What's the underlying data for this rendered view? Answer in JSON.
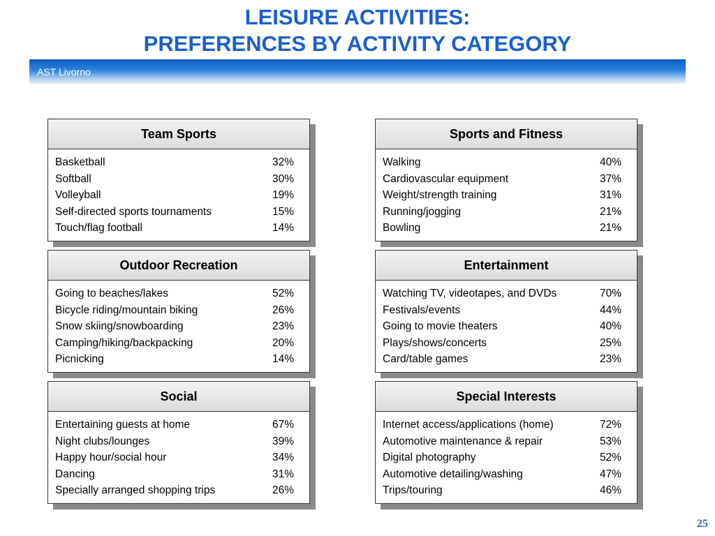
{
  "title_line1": "LEISURE ACTIVITIES:",
  "title_line2": "PREFERENCES BY ACTIVITY CATEGORY",
  "banner_text": "AST Livorno",
  "page_number": "25",
  "colors": {
    "title": "#1a5fd0",
    "banner": "#1a6fd0"
  },
  "cards": [
    {
      "title": "Team Sports",
      "items": [
        {
          "label": "Basketball",
          "pct": "32%"
        },
        {
          "label": "Softball",
          "pct": "30%"
        },
        {
          "label": "Volleyball",
          "pct": "19%"
        },
        {
          "label": "Self-directed sports tournaments",
          "pct": "15%"
        },
        {
          "label": "Touch/flag football",
          "pct": "14%"
        }
      ]
    },
    {
      "title": "Sports and Fitness",
      "items": [
        {
          "label": "Walking",
          "pct": "40%"
        },
        {
          "label": "Cardiovascular equipment",
          "pct": "37%"
        },
        {
          "label": "Weight/strength training",
          "pct": "31%"
        },
        {
          "label": "Running/jogging",
          "pct": "21%"
        },
        {
          "label": "Bowling",
          "pct": "21%"
        }
      ]
    },
    {
      "title": "Outdoor Recreation",
      "items": [
        {
          "label": "Going to beaches/lakes",
          "pct": "52%"
        },
        {
          "label": "Bicycle riding/mountain biking",
          "pct": "26%"
        },
        {
          "label": "Snow skiing/snowboarding",
          "pct": "23%"
        },
        {
          "label": "Camping/hiking/backpacking",
          "pct": "20%"
        },
        {
          "label": "Picnicking",
          "pct": "14%"
        }
      ]
    },
    {
      "title": "Entertainment",
      "items": [
        {
          "label": "Watching TV, videotapes, and DVDs",
          "pct": "70%"
        },
        {
          "label": "Festivals/events",
          "pct": "44%"
        },
        {
          "label": "Going to movie theaters",
          "pct": "40%"
        },
        {
          "label": "Plays/shows/concerts",
          "pct": "25%"
        },
        {
          "label": "Card/table games",
          "pct": "23%"
        }
      ]
    },
    {
      "title": "Social",
      "items": [
        {
          "label": "Entertaining guests at home",
          "pct": "67%"
        },
        {
          "label": "Night clubs/lounges",
          "pct": "39%"
        },
        {
          "label": "Happy hour/social hour",
          "pct": "34%"
        },
        {
          "label": "Dancing",
          "pct": "31%"
        },
        {
          "label": "Specially arranged shopping trips",
          "pct": "26%"
        }
      ]
    },
    {
      "title": "Special Interests",
      "items": [
        {
          "label": "Internet access/applications (home)",
          "pct": "72%"
        },
        {
          "label": "Automotive maintenance & repair",
          "pct": "53%"
        },
        {
          "label": "Digital photography",
          "pct": "52%"
        },
        {
          "label": "Automotive detailing/washing",
          "pct": "47%"
        },
        {
          "label": "Trips/touring",
          "pct": "46%"
        }
      ]
    }
  ]
}
